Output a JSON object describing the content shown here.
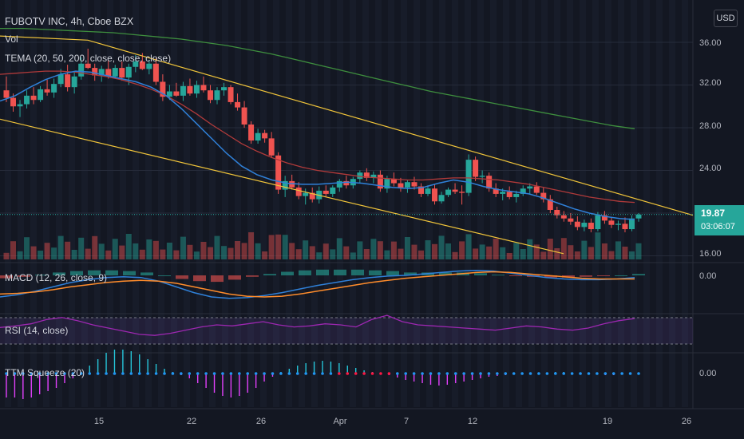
{
  "header": {
    "title": "FUBOTV INC, 4h, Cboe BZX",
    "vol_label": "Vol",
    "tema_label": "TEMA (20, 50, 200, close, close, close)"
  },
  "currency": "USD",
  "panes": {
    "macd_label": "MACD (12, 26, close, 9)",
    "rsi_label": "RSI (14, close)",
    "ttm_label": "TTM Squeeze (20)"
  },
  "last_price": {
    "value": "19.87",
    "countdown": "03:06:07"
  },
  "colors": {
    "up": "#26a69a",
    "down": "#ef5350",
    "trend": "#f0c43a",
    "tema20": "#2f80d8",
    "tema50": "#b03a3a",
    "tema200": "#3e8e3e",
    "rsi": "#9c27b0"
  },
  "chart_data": {
    "type": "candlestick",
    "title": "FUBOTV INC, 4h, Cboe BZX",
    "y_ticks": [
      "36.00",
      "32.00",
      "28.00",
      "24.00",
      "16.00"
    ],
    "x_ticks": [
      "15",
      "22",
      "26",
      "Apr",
      "7",
      "12",
      "19",
      "26"
    ],
    "macd_ticks": [
      "0.00"
    ],
    "ttm_ticks": [
      "0.00"
    ],
    "ylim": [
      15,
      38
    ],
    "candles": [
      [
        31.5,
        32.8,
        30.4,
        30.8
      ],
      [
        30.8,
        31.2,
        29.5,
        30.0
      ],
      [
        30.0,
        30.6,
        29.0,
        30.2
      ],
      [
        30.2,
        31.5,
        29.8,
        31.0
      ],
      [
        31.0,
        31.8,
        30.2,
        30.6
      ],
      [
        30.6,
        31.9,
        30.4,
        31.6
      ],
      [
        31.6,
        32.5,
        31.0,
        31.3
      ],
      [
        31.3,
        32.6,
        30.8,
        32.1
      ],
      [
        32.1,
        33.5,
        31.8,
        33.0
      ],
      [
        33.0,
        33.9,
        31.4,
        31.8
      ],
      [
        31.8,
        33.2,
        31.2,
        32.8
      ],
      [
        32.8,
        34.6,
        32.5,
        34.0
      ],
      [
        34.0,
        35.4,
        33.5,
        33.6
      ],
      [
        33.6,
        34.0,
        32.4,
        32.9
      ],
      [
        32.9,
        33.8,
        32.3,
        33.5
      ],
      [
        33.5,
        34.3,
        32.6,
        32.8
      ],
      [
        32.8,
        33.9,
        32.6,
        33.6
      ],
      [
        33.6,
        34.2,
        32.4,
        32.7
      ],
      [
        32.7,
        34.0,
        32.0,
        33.7
      ],
      [
        33.7,
        34.8,
        33.2,
        34.2
      ],
      [
        34.2,
        35.0,
        33.4,
        33.5
      ],
      [
        33.5,
        34.3,
        33.0,
        34.0
      ],
      [
        34.0,
        34.5,
        32.0,
        32.3
      ],
      [
        32.3,
        33.0,
        30.5,
        30.9
      ],
      [
        30.9,
        32.0,
        30.6,
        31.4
      ],
      [
        31.4,
        32.2,
        30.9,
        31.0
      ],
      [
        31.0,
        32.3,
        30.5,
        31.9
      ],
      [
        31.9,
        32.6,
        31.0,
        31.2
      ],
      [
        31.2,
        32.4,
        30.8,
        32.0
      ],
      [
        32.0,
        32.8,
        31.3,
        31.5
      ],
      [
        31.5,
        32.0,
        30.3,
        30.6
      ],
      [
        30.6,
        31.8,
        30.2,
        31.5
      ],
      [
        31.5,
        32.2,
        31.0,
        31.8
      ],
      [
        31.8,
        32.0,
        30.2,
        30.4
      ],
      [
        30.4,
        31.2,
        29.6,
        29.9
      ],
      [
        29.9,
        30.5,
        28.0,
        28.3
      ],
      [
        28.3,
        28.6,
        26.5,
        26.8
      ],
      [
        26.8,
        27.9,
        26.5,
        27.5
      ],
      [
        27.5,
        27.8,
        26.6,
        27.0
      ],
      [
        27.0,
        27.6,
        25.2,
        25.4
      ],
      [
        25.4,
        25.7,
        21.8,
        22.2
      ],
      [
        22.2,
        23.5,
        21.5,
        23.0
      ],
      [
        23.0,
        23.6,
        22.2,
        22.4
      ],
      [
        22.4,
        22.9,
        21.3,
        21.6
      ],
      [
        21.6,
        22.3,
        20.8,
        21.9
      ],
      [
        21.9,
        22.4,
        21.0,
        21.3
      ],
      [
        21.3,
        22.5,
        20.9,
        22.1
      ],
      [
        22.1,
        22.6,
        21.5,
        21.8
      ],
      [
        21.8,
        22.6,
        21.5,
        22.4
      ],
      [
        22.4,
        23.2,
        22.0,
        23.0
      ],
      [
        23.0,
        23.5,
        22.3,
        22.6
      ],
      [
        22.6,
        23.4,
        22.3,
        23.2
      ],
      [
        23.2,
        24.0,
        22.8,
        23.8
      ],
      [
        23.8,
        24.2,
        23.0,
        23.3
      ],
      [
        23.3,
        23.9,
        22.8,
        23.6
      ],
      [
        23.6,
        24.0,
        22.0,
        22.3
      ],
      [
        22.3,
        23.5,
        21.9,
        23.2
      ],
      [
        23.2,
        23.8,
        22.5,
        22.8
      ],
      [
        22.8,
        23.3,
        22.0,
        22.4
      ],
      [
        22.4,
        23.1,
        21.9,
        22.9
      ],
      [
        22.9,
        23.4,
        22.2,
        22.5
      ],
      [
        22.5,
        22.8,
        21.5,
        21.8
      ],
      [
        21.8,
        22.6,
        21.6,
        22.3
      ],
      [
        22.3,
        22.7,
        20.8,
        21.1
      ],
      [
        21.1,
        22.0,
        20.9,
        21.7
      ],
      [
        21.7,
        22.4,
        21.5,
        22.2
      ],
      [
        22.2,
        22.8,
        21.8,
        22.0
      ],
      [
        22.0,
        22.6,
        20.8,
        21.9
      ],
      [
        21.9,
        25.5,
        21.6,
        25.0
      ],
      [
        25.0,
        25.3,
        23.0,
        23.4
      ],
      [
        23.4,
        24.0,
        22.8,
        23.5
      ],
      [
        23.5,
        23.8,
        22.0,
        22.3
      ],
      [
        22.3,
        22.8,
        21.5,
        21.8
      ],
      [
        21.8,
        22.3,
        21.2,
        22.0
      ],
      [
        22.0,
        22.5,
        21.3,
        21.5
      ],
      [
        21.5,
        22.1,
        21.0,
        21.8
      ],
      [
        21.8,
        22.6,
        21.6,
        22.3
      ],
      [
        22.3,
        22.8,
        21.8,
        22.5
      ],
      [
        22.5,
        22.9,
        21.7,
        21.9
      ],
      [
        21.9,
        22.4,
        21.0,
        21.3
      ],
      [
        21.3,
        21.7,
        20.0,
        20.3
      ],
      [
        20.3,
        20.6,
        19.5,
        19.8
      ],
      [
        19.8,
        20.2,
        19.2,
        19.5
      ],
      [
        19.5,
        20.0,
        18.9,
        19.2
      ],
      [
        19.2,
        19.7,
        18.4,
        18.7
      ],
      [
        18.7,
        19.4,
        18.3,
        19.1
      ],
      [
        19.1,
        19.5,
        18.2,
        18.5
      ],
      [
        18.5,
        20.1,
        18.3,
        19.8
      ],
      [
        19.8,
        20.2,
        19.0,
        19.3
      ],
      [
        19.3,
        19.6,
        18.6,
        18.9
      ],
      [
        18.9,
        19.3,
        18.4,
        19.0
      ],
      [
        19.0,
        19.6,
        18.2,
        18.5
      ],
      [
        18.5,
        19.8,
        18.3,
        19.5
      ],
      [
        19.5,
        20.0,
        19.2,
        19.87
      ]
    ],
    "tema20": [
      30.5,
      31.0,
      31.8,
      32.5,
      33.0,
      33.3,
      33.2,
      32.9,
      32.6,
      32.3,
      31.8,
      31.0,
      29.8,
      28.4,
      27.0,
      25.6,
      24.4,
      23.6,
      23.1,
      22.8,
      22.7,
      22.7,
      22.8,
      22.9,
      22.8,
      22.6,
      22.4,
      22.3,
      22.4,
      22.8,
      23.1,
      22.9,
      22.5,
      22.2,
      22.0,
      21.8,
      21.4,
      20.9,
      20.4,
      20.0,
      19.7,
      19.5,
      19.4
    ],
    "tema50": [
      33.0,
      33.1,
      33.2,
      33.3,
      33.3,
      33.2,
      33.0,
      32.8,
      32.5,
      32.1,
      31.6,
      31.0,
      30.2,
      29.3,
      28.3,
      27.4,
      26.5,
      25.8,
      25.2,
      24.7,
      24.3,
      24.0,
      23.8,
      23.6,
      23.4,
      23.3,
      23.2,
      23.1,
      23.1,
      23.2,
      23.3,
      23.3,
      23.2,
      23.1,
      22.9,
      22.7,
      22.4,
      22.1,
      21.8,
      21.5,
      21.3,
      21.1,
      21.0
    ],
    "tema200": [
      37.3,
      37.3,
      37.2,
      37.1,
      37.0,
      36.9,
      36.7,
      36.5,
      36.3,
      36.0,
      35.7,
      35.3,
      34.9,
      34.4,
      33.9,
      33.4,
      32.9,
      32.4,
      31.9,
      31.4,
      31.0,
      30.6,
      30.2,
      29.8,
      29.4,
      29.0,
      28.6,
      28.2,
      27.9
    ],
    "trend_upper": [
      [
        -2,
        36.6
      ],
      [
        110,
        36.2
      ],
      [
        868,
        19.8
      ]
    ],
    "trend_lower": [
      [
        0,
        28.8
      ],
      [
        706,
        16.2
      ]
    ],
    "macd_line": [
      -3.0,
      -2.7,
      -2.2,
      -1.6,
      -1.0,
      -0.6,
      -0.3,
      -0.2,
      -0.3,
      -0.8,
      -1.6,
      -2.4,
      -3.0,
      -3.2,
      -3.1,
      -2.8,
      -2.4,
      -1.9,
      -1.4,
      -1.0,
      -0.6,
      -0.3,
      -0.1,
      0.0,
      0.2,
      0.4,
      0.6,
      0.7,
      0.6,
      0.3,
      0.0,
      -0.3,
      -0.5,
      -0.6,
      -0.6,
      -0.5,
      -0.3
    ],
    "signal_line": [
      -2.6,
      -2.5,
      -2.3,
      -2.0,
      -1.6,
      -1.3,
      -1.0,
      -0.8,
      -0.7,
      -0.8,
      -1.1,
      -1.6,
      -2.1,
      -2.6,
      -2.9,
      -3.0,
      -2.9,
      -2.6,
      -2.2,
      -1.8,
      -1.4,
      -1.0,
      -0.7,
      -0.4,
      -0.2,
      0.0,
      0.2,
      0.4,
      0.5,
      0.4,
      0.2,
      0.0,
      -0.2,
      -0.4,
      -0.5,
      -0.5,
      -0.5
    ],
    "rsi": [
      45,
      48,
      52,
      60,
      64,
      58,
      50,
      44,
      38,
      32,
      30,
      34,
      40,
      46,
      50,
      48,
      52,
      56,
      50,
      46,
      48,
      52,
      50,
      46,
      60,
      68,
      56,
      50,
      48,
      46,
      44,
      42,
      40,
      44,
      48,
      46,
      42,
      40,
      44,
      52,
      58,
      62
    ],
    "ttm_hist": [
      -3,
      -3,
      -3.2,
      -3,
      -2.6,
      -2.2,
      -1.8,
      -1.2,
      -0.6,
      0.2,
      1.0,
      1.8,
      2.6,
      3.0,
      3.0,
      2.8,
      2.4,
      1.8,
      1.2,
      0.6,
      0.2,
      -0.2,
      -0.6,
      -1.2,
      -1.8,
      -2.4,
      -2.8,
      -3.0,
      -2.8,
      -2.4,
      -1.8,
      -1.0,
      -0.4,
      0.2,
      0.6,
      1.0,
      1.3,
      1.5,
      1.6,
      1.5,
      1.3,
      1.0,
      0.7,
      0.4,
      0.2,
      0.0,
      -0.2,
      -0.5,
      -0.8,
      -1.0,
      -1.2,
      -1.4,
      -1.5,
      -1.4,
      -1.2,
      -1.0,
      -0.8,
      -0.6,
      -0.4,
      -0.3,
      -0.2,
      -0.1,
      -0.1,
      0.0,
      0.1,
      0.1,
      0.2,
      0.2,
      0.1,
      0.0,
      -0.1,
      -0.1,
      -0.2,
      -0.2,
      -0.1,
      0.0,
      0.1
    ],
    "ttm_squeeze_red_range": [
      40,
      46
    ]
  }
}
